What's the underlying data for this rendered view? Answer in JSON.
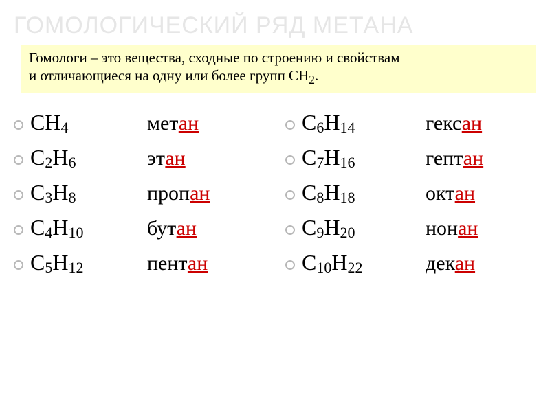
{
  "title": "ГОМОЛОГИЧЕСКИЙ РЯД МЕТАНА",
  "definition": {
    "line1": "Гомологи – это вещества, сходные по строению и свойствам",
    "line2_a": " и отличающиеся на одну или более групп СН",
    "line2_sub": "2",
    "line2_b": "."
  },
  "suffix": "ан",
  "left": [
    {
      "c": "4",
      "h": "",
      "prefix": "мет",
      "pre": "CH"
    },
    {
      "c": "2",
      "h": "6",
      "prefix": "эт",
      "pre": "С"
    },
    {
      "c": "3",
      "h": "8",
      "prefix": "проп",
      "pre": "С"
    },
    {
      "c": "4",
      "h": "10",
      "prefix": "бут",
      "pre": "С"
    },
    {
      "c": "5",
      "h": "12",
      "prefix": "пент",
      "pre": "С"
    }
  ],
  "right": [
    {
      "c": "6",
      "h": "14",
      "prefix": "гекс",
      "pre": "С"
    },
    {
      "c": "7",
      "h": "16",
      "prefix": "гепт",
      "pre": "С"
    },
    {
      "c": "8",
      "h": "18",
      "prefix": "окт",
      "pre": "С"
    },
    {
      "c": "9",
      "h": "20",
      "prefix": "нон",
      "pre": "С"
    },
    {
      "c": "10",
      "h": "22",
      "prefix": "дек",
      "pre": "С"
    }
  ],
  "colors": {
    "title": "#e6e6e6",
    "defbox_bg": "#ffffcc",
    "suffix": "#cc0000",
    "bullet_border": "#b8b8b8",
    "text": "#000000",
    "background": "#ffffff"
  }
}
